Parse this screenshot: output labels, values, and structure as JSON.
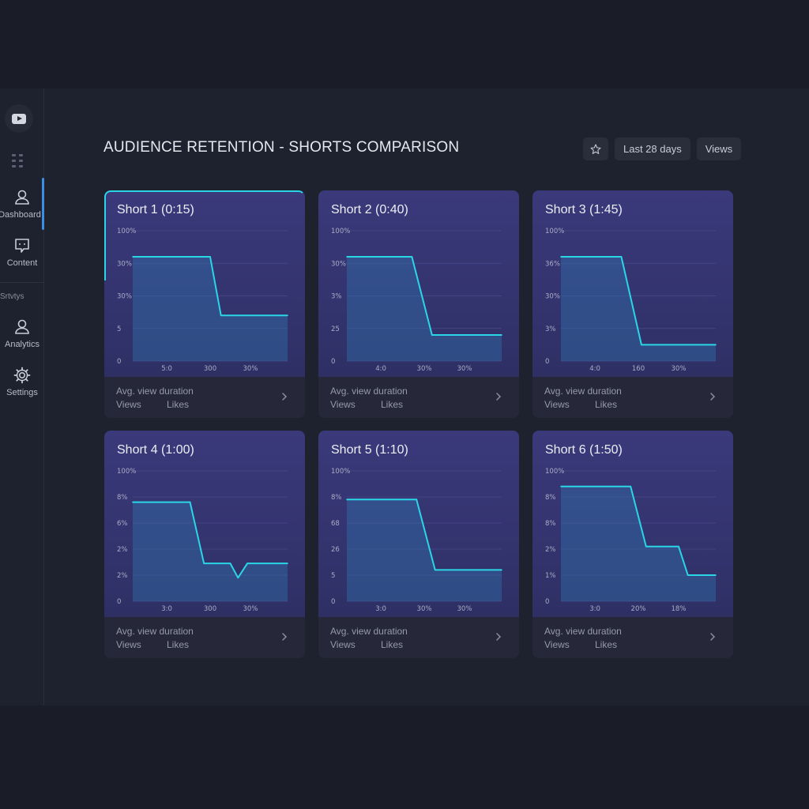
{
  "app": {
    "title": "AUDIENCE RETENTION - SHORTS COMPARISON"
  },
  "header": {
    "star_icon": "star-icon",
    "date_range": "Last 28 days",
    "metric": "Views"
  },
  "sidebar": {
    "logo_icon": "youtube-icon",
    "items": [
      {
        "label": "Dashboard",
        "icon": "user-icon",
        "active": true
      },
      {
        "label": "Content",
        "icon": "content-icon",
        "active": false
      },
      {
        "label": "Analytics",
        "icon": "user-icon",
        "active": false
      },
      {
        "label": "Settings",
        "icon": "gear-icon",
        "active": false
      }
    ],
    "section_label": "Srtvtys"
  },
  "colors": {
    "accent": "#2ad6e6",
    "active_nav": "#3a8fe0",
    "card_top": "#3a397a",
    "background": "#1e222e"
  },
  "footer_labels": {
    "avg": "Avg. view duration",
    "views": "Views",
    "likes": "Likes"
  },
  "cards": [
    {
      "title": "Short 1 (0:15)",
      "likes_label": "Likes",
      "y_ticks": [
        "100%",
        "30%",
        "30%",
        "5",
        "0"
      ],
      "x_ticks": [
        "5:0",
        "300",
        "30%"
      ],
      "chart_data": {
        "type": "line",
        "x": [
          0,
          0.5,
          0.57,
          1
        ],
        "values": [
          3.2,
          3.2,
          1.4,
          1.4
        ]
      }
    },
    {
      "title": "Short 2 (0:40)",
      "likes_label": "Likes",
      "y_ticks": [
        "100%",
        "30%",
        "3%",
        "25",
        "0"
      ],
      "x_ticks": [
        "4:0",
        "30%",
        "30%"
      ],
      "chart_data": {
        "type": "line",
        "x": [
          0,
          0.42,
          0.55,
          1
        ],
        "values": [
          3.2,
          3.2,
          0.8,
          0.8
        ]
      }
    },
    {
      "title": "Short 3 (1:45)",
      "likes_label": "Likes",
      "y_ticks": [
        "100%",
        "36%",
        "30%",
        "3%",
        "0"
      ],
      "x_ticks": [
        "4:0",
        "160",
        "30%"
      ],
      "chart_data": {
        "type": "line",
        "x": [
          0,
          0.39,
          0.52,
          1
        ],
        "values": [
          3.2,
          3.2,
          0.5,
          0.5
        ]
      }
    },
    {
      "title": "Short 4 (1:00)",
      "likes_label": "Likes",
      "y_ticks": [
        "100%",
        "8%",
        "6%",
        "2%",
        "2%",
        "0"
      ],
      "x_ticks": [
        "3:0",
        "300",
        "30%"
      ],
      "chart_data": {
        "type": "line",
        "x": [
          0,
          0.37,
          0.46,
          0.63,
          0.68,
          0.74,
          1
        ],
        "values": [
          3.8,
          3.8,
          1.45,
          1.45,
          0.9,
          1.45,
          1.45
        ]
      }
    },
    {
      "title": "Short 5 (1:10)",
      "likes_label": "Likes",
      "y_ticks": [
        "100%",
        "8%",
        "68",
        "26",
        "5",
        "0"
      ],
      "x_ticks": [
        "3:0",
        "30%",
        "30%"
      ],
      "chart_data": {
        "type": "line",
        "x": [
          0,
          0.45,
          0.57,
          1
        ],
        "values": [
          3.9,
          3.9,
          1.2,
          1.2
        ]
      }
    },
    {
      "title": "Short 6 (1:50)",
      "likes_label": "Likes",
      "y_ticks": [
        "100%",
        "8%",
        "8%",
        "2%",
        "1%",
        "0"
      ],
      "x_ticks": [
        "3:0",
        "20%",
        "18%"
      ],
      "chart_data": {
        "type": "line",
        "x": [
          0,
          0.45,
          0.55,
          0.76,
          0.82,
          1
        ],
        "values": [
          4.4,
          4.4,
          2.1,
          2.1,
          1.0,
          1.0
        ]
      }
    }
  ]
}
